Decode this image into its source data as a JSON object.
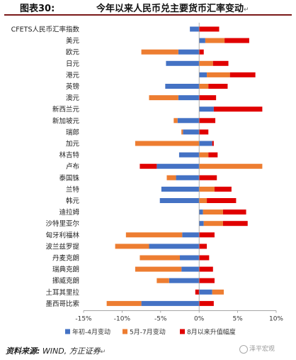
{
  "header": {
    "figure_label": "图表30:",
    "title": "今年以来人民币兑主要货币汇率变动",
    "title_mark": "↵"
  },
  "footer": {
    "source_label": "资料来源:",
    "source_text": " WIND, 方正证券",
    "source_mark": "↵"
  },
  "watermark": {
    "text": "泽平宏观"
  },
  "colors": {
    "series1": "#4472C4",
    "series2": "#ED7D31",
    "series3": "#E00000"
  },
  "chart_data": {
    "type": "bar",
    "orientation": "horizontal",
    "stacked": true,
    "categories": [
      "CFETS人民币汇率指数",
      "美元",
      "欧元",
      "日元",
      "港元",
      "英镑",
      "澳元",
      "新西兰元",
      "新加坡元",
      "瑞郎",
      "加元",
      "林吉特",
      "卢布",
      "泰国铢",
      "兰特",
      "韩元",
      "迪拉姆",
      "沙特里亚尔",
      "匈牙利福林",
      "波兰兹罗提",
      "丹麦克朗",
      "瑞典克朗",
      "挪威克朗",
      "土耳其里拉",
      "墨西哥比索"
    ],
    "series": [
      {
        "name": "年初-4月变动",
        "values": [
          -1.2,
          0.8,
          -2.7,
          -4.3,
          1.0,
          -4.4,
          -2.7,
          1.9,
          -2.8,
          -2.1,
          1.7,
          -2.6,
          -5.5,
          -3.0,
          -4.9,
          -5.1,
          0.5,
          0.6,
          -2.2,
          -6.5,
          -2.5,
          -2.3,
          -3.9,
          1.7,
          -7.5
        ]
      },
      {
        "name": "5月-7月变动",
        "values": [
          0.0,
          2.5,
          -4.8,
          1.8,
          3.0,
          1.2,
          -3.8,
          0.0,
          -0.5,
          -0.2,
          -8.3,
          1.2,
          8.2,
          -1.2,
          2.0,
          1.0,
          2.6,
          2.5,
          -7.3,
          -4.4,
          -5.2,
          -6.0,
          -1.6,
          1.5,
          -4.5
        ]
      },
      {
        "name": "8月以来升值幅度",
        "values": [
          2.6,
          3.2,
          0.6,
          2.0,
          3.3,
          2.5,
          2.2,
          6.3,
          2.1,
          1.2,
          0.2,
          1.2,
          -2.2,
          2.3,
          2.2,
          3.8,
          3.0,
          3.2,
          2.0,
          1.0,
          1.3,
          1.8,
          2.0,
          -0.5,
          1.9
        ]
      }
    ],
    "xlim": [
      -15,
      10
    ],
    "xticks": [
      -15,
      -10,
      -5,
      0,
      5,
      10
    ],
    "xtick_labels": [
      "-15%",
      "-10%",
      "-5%",
      "0%",
      "5%",
      "10%"
    ],
    "xlabel": "",
    "ylabel": "",
    "grid": false,
    "legend_position": "bottom"
  }
}
